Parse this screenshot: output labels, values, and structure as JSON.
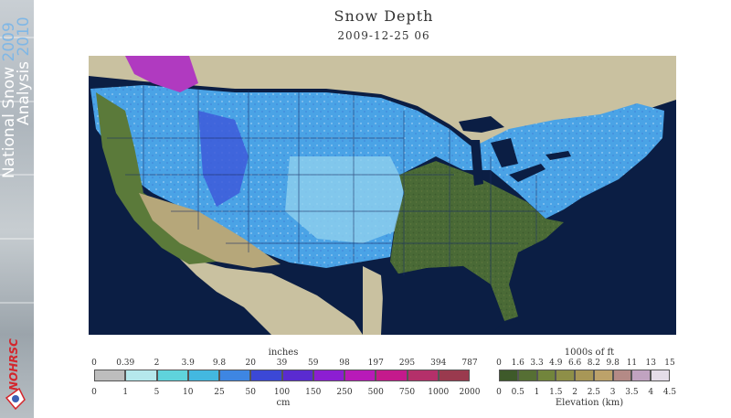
{
  "banner": {
    "line1_text": "National Snow",
    "line1_year": "2009",
    "line2_text": "Analysis",
    "line2_year": "2010",
    "logo_text": "NOHRSC"
  },
  "header": {
    "title": "Snow Depth",
    "subtitle": "2009-12-25 06"
  },
  "snow_legend": {
    "unit_top": "inches",
    "unit_bottom": "cm",
    "ticks_top": [
      "0",
      "0.39",
      "2",
      "3.9",
      "9.8",
      "20",
      "39",
      "59",
      "98",
      "197",
      "295",
      "394",
      "787"
    ],
    "ticks_bottom": [
      "0",
      "1",
      "5",
      "10",
      "25",
      "50",
      "100",
      "150",
      "250",
      "500",
      "750",
      "1000",
      "2000"
    ],
    "colors": [
      "#bdbdbd",
      "#b5e8ec",
      "#5fd3dc",
      "#43b8e0",
      "#3e86e2",
      "#3b48d6",
      "#5a2bd0",
      "#8c1ed2",
      "#b81ab8",
      "#c41a8c",
      "#b4306a",
      "#9a3a4e"
    ]
  },
  "elevation_legend": {
    "unit_top": "1000s of ft",
    "unit_bottom": "Elevation (km)",
    "ticks_top": [
      "0",
      "1.6",
      "3.3",
      "4.9",
      "6.6",
      "8.2",
      "9.8",
      "11",
      "13",
      "15"
    ],
    "ticks_bottom": [
      "0",
      "0.5",
      "1",
      "1.5",
      "2",
      "2.5",
      "3",
      "3.5",
      "4",
      "4.5"
    ],
    "colors": [
      "#3e5a2a",
      "#566f34",
      "#72853c",
      "#8e8f48",
      "#a89757",
      "#bca26a",
      "#b48a86",
      "#c0a3c0",
      "#e4dde8"
    ]
  }
}
